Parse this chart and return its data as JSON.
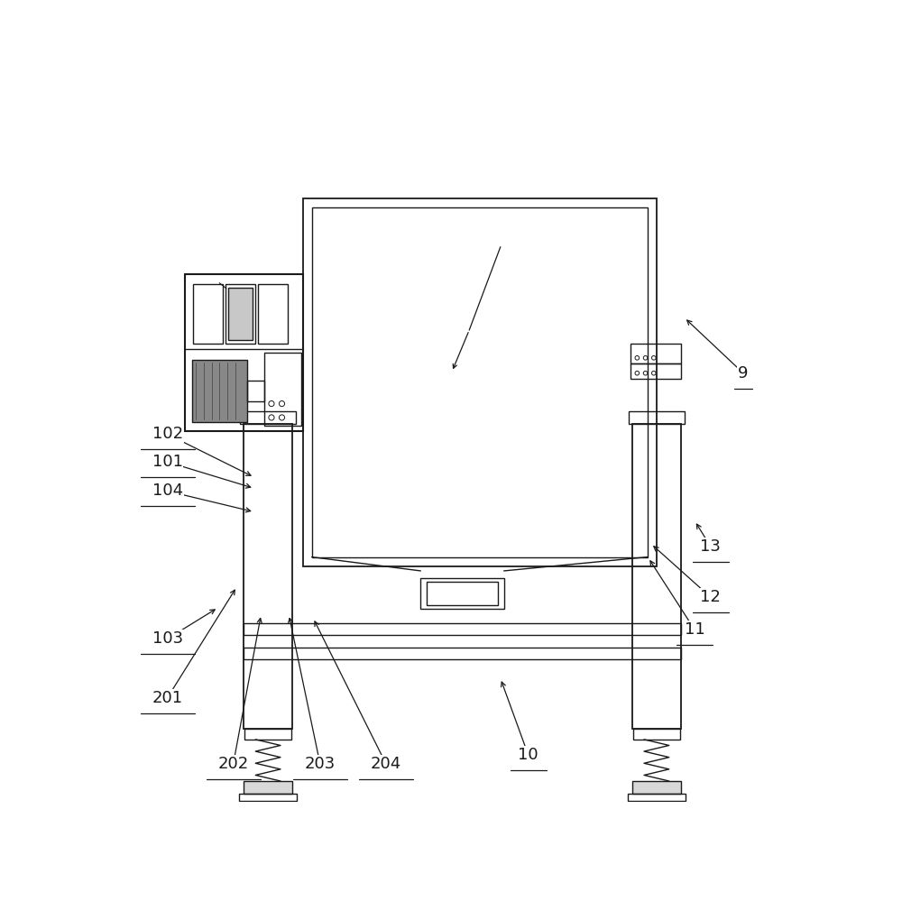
{
  "bg_color": "#ffffff",
  "line_color": "#1a1a1a",
  "lw": 1.0,
  "annotations": {
    "201": {
      "lp": [
        0.075,
        0.15
      ],
      "ae": [
        0.175,
        0.31
      ]
    },
    "202": {
      "lp": [
        0.17,
        0.055
      ],
      "ae": [
        0.21,
        0.27
      ]
    },
    "203": {
      "lp": [
        0.295,
        0.055
      ],
      "ae": [
        0.25,
        0.27
      ]
    },
    "204": {
      "lp": [
        0.39,
        0.055
      ],
      "ae": [
        0.285,
        0.265
      ]
    },
    "103": {
      "lp": [
        0.075,
        0.235
      ],
      "ae": [
        0.148,
        0.28
      ]
    },
    "104": {
      "lp": [
        0.075,
        0.448
      ],
      "ae": [
        0.2,
        0.418
      ]
    },
    "101": {
      "lp": [
        0.075,
        0.49
      ],
      "ae": [
        0.2,
        0.452
      ]
    },
    "102": {
      "lp": [
        0.075,
        0.53
      ],
      "ae": [
        0.2,
        0.468
      ]
    },
    "10": {
      "lp": [
        0.595,
        0.068
      ],
      "ae": [
        0.555,
        0.178
      ]
    },
    "11": {
      "lp": [
        0.835,
        0.248
      ],
      "ae": [
        0.768,
        0.352
      ]
    },
    "12": {
      "lp": [
        0.858,
        0.295
      ],
      "ae": [
        0.772,
        0.372
      ]
    },
    "13": {
      "lp": [
        0.858,
        0.368
      ],
      "ae": [
        0.835,
        0.405
      ]
    },
    "9": {
      "lp": [
        0.905,
        0.618
      ],
      "ae": [
        0.82,
        0.698
      ]
    }
  }
}
